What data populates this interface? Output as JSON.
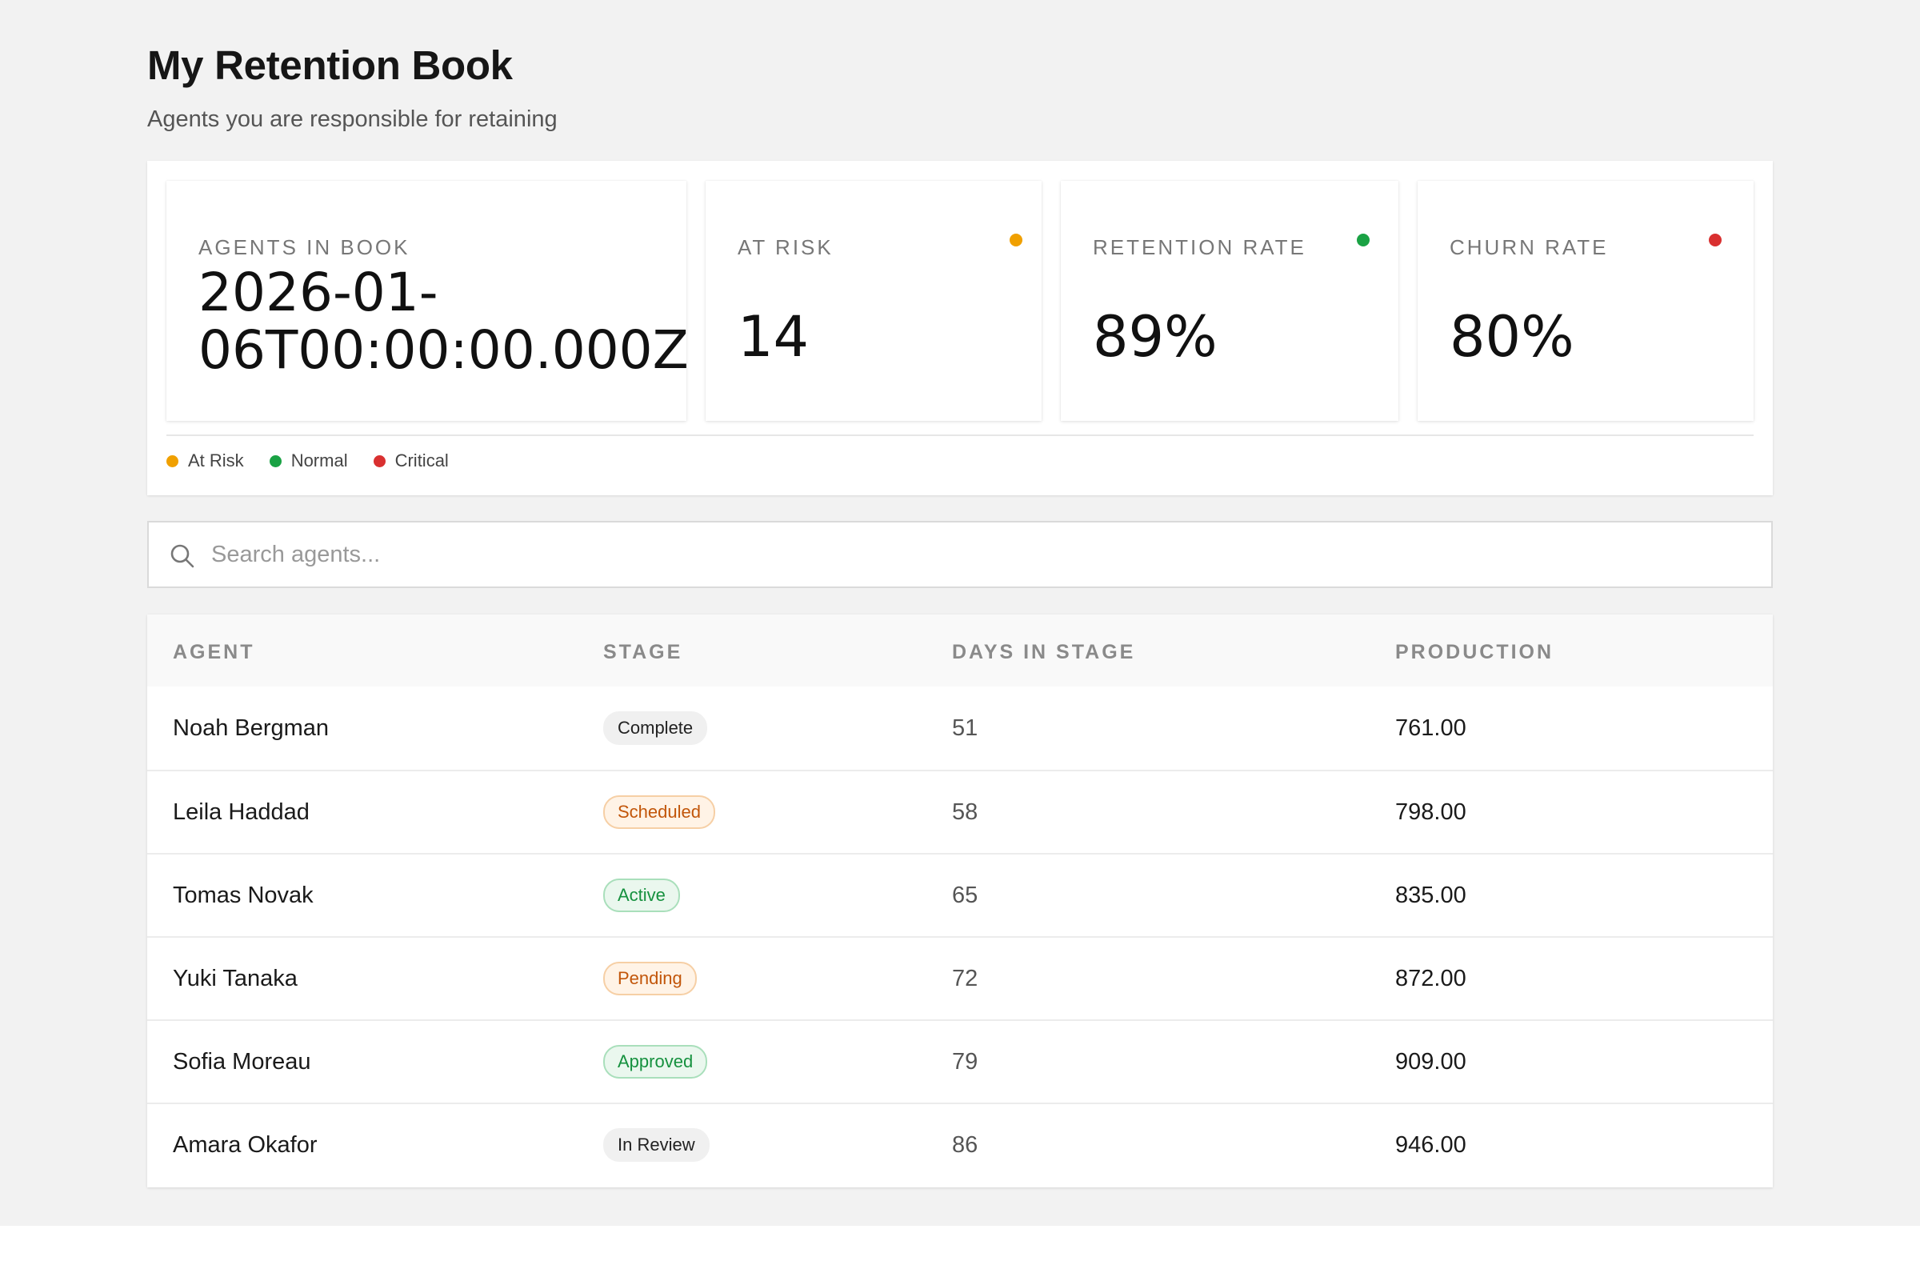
{
  "page": {
    "title": "My Retention Book",
    "subtitle": "Agents you are responsible for retaining"
  },
  "stats": [
    {
      "label": "AGENTS IN BOOK",
      "value": "2026-01-06T00:00:00.000Z",
      "dot_color": null
    },
    {
      "label": "AT RISK",
      "value": "14",
      "dot_color": "#f0a000"
    },
    {
      "label": "RETENTION RATE",
      "value": "89%",
      "dot_color": "#1aa244"
    },
    {
      "label": "CHURN RATE",
      "value": "80%",
      "dot_color": "#d93030"
    }
  ],
  "legend": [
    {
      "label": "At Risk",
      "color": "#f0a000"
    },
    {
      "label": "Normal",
      "color": "#1aa244"
    },
    {
      "label": "Critical",
      "color": "#d93030"
    }
  ],
  "search": {
    "placeholder": "Search agents...",
    "value": "",
    "icon": "search-icon"
  },
  "table": {
    "columns": [
      "AGENT",
      "STAGE",
      "DAYS IN STAGE",
      "PRODUCTION"
    ],
    "rows": [
      {
        "agent": "Noah Bergman",
        "stage": "Complete",
        "stage_style": "gray",
        "days": "51",
        "production": "761.00"
      },
      {
        "agent": "Leila Haddad",
        "stage": "Scheduled",
        "stage_style": "orange",
        "days": "58",
        "production": "798.00"
      },
      {
        "agent": "Tomas Novak",
        "stage": "Active",
        "stage_style": "green",
        "days": "65",
        "production": "835.00"
      },
      {
        "agent": "Yuki Tanaka",
        "stage": "Pending",
        "stage_style": "orange",
        "days": "72",
        "production": "872.00"
      },
      {
        "agent": "Sofia Moreau",
        "stage": "Approved",
        "stage_style": "green",
        "days": "79",
        "production": "909.00"
      },
      {
        "agent": "Amara Okafor",
        "stage": "In Review",
        "stage_style": "gray",
        "days": "86",
        "production": "946.00"
      }
    ]
  }
}
